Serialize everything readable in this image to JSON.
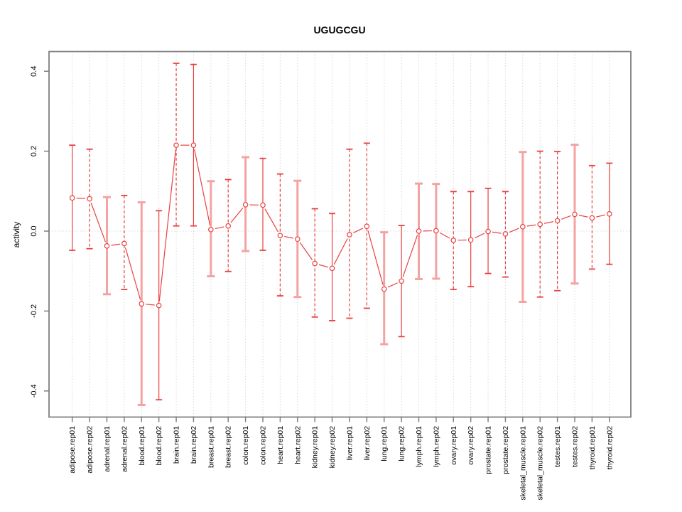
{
  "window": {
    "background": "#ffffff"
  },
  "chart_data": {
    "type": "line",
    "title": "UGUGCGU",
    "xlabel": "",
    "ylabel": "activity",
    "legend_position": "none",
    "grid": {
      "vertical_dotted_per_category": true,
      "horizontal_dotted_at_zero": true
    },
    "ylim": [
      -0.47,
      0.45
    ],
    "y_ticks": [
      -0.4,
      -0.2,
      0.0,
      0.2,
      0.4
    ],
    "categories": [
      "adipose.rep01",
      "adipose.rep02",
      "adrenal.rep01",
      "adrenal.rep02",
      "blood.rep01",
      "blood.rep02",
      "brain.rep01",
      "brain.rep02",
      "breast.rep01",
      "breast.rep02",
      "colon.rep01",
      "colon.rep02",
      "heart.rep01",
      "heart.rep02",
      "kidney.rep01",
      "kidney.rep02",
      "liver.rep01",
      "liver.rep02",
      "lung.rep01",
      "lung.rep02",
      "lymph.rep01",
      "lymph.rep02",
      "ovary.rep01",
      "ovary.rep02",
      "prostate.rep01",
      "prostate.rep02",
      "skeletal_muscle.rep01",
      "skeletal_muscle.rep02",
      "testes.rep01",
      "testes.rep02",
      "thyroid.rep01",
      "thyroid.rep02"
    ],
    "series": [
      {
        "name": "activity",
        "values": [
          0.083,
          0.081,
          -0.037,
          -0.031,
          -0.182,
          -0.186,
          0.215,
          0.215,
          0.004,
          0.013,
          0.066,
          0.065,
          -0.011,
          -0.02,
          -0.081,
          -0.093,
          -0.009,
          0.012,
          -0.145,
          -0.125,
          0.0,
          0.001,
          -0.023,
          -0.022,
          -0.001,
          -0.007,
          0.011,
          0.017,
          0.026,
          0.042,
          0.033,
          0.043
        ],
        "error_upper": [
          0.215,
          0.205,
          0.085,
          0.089,
          0.072,
          0.051,
          0.42,
          0.417,
          0.125,
          0.129,
          0.185,
          0.182,
          0.143,
          0.126,
          0.056,
          0.044,
          0.205,
          0.22,
          -0.003,
          0.014,
          0.119,
          0.118,
          0.099,
          0.099,
          0.107,
          0.099,
          0.198,
          0.2,
          0.199,
          0.216,
          0.164,
          0.17
        ],
        "error_lower": [
          -0.048,
          -0.044,
          -0.158,
          -0.146,
          -0.435,
          -0.422,
          0.013,
          0.013,
          -0.113,
          -0.101,
          -0.05,
          -0.048,
          -0.162,
          -0.165,
          -0.215,
          -0.224,
          -0.218,
          -0.193,
          -0.283,
          -0.264,
          -0.12,
          -0.119,
          -0.146,
          -0.139,
          -0.106,
          -0.115,
          -0.177,
          -0.165,
          -0.149,
          -0.131,
          -0.095,
          -0.083
        ],
        "error_bar_styles": [
          "solid",
          "dashed",
          "thick",
          "dashed",
          "thick",
          "solid",
          "dashed",
          "solid",
          "thick",
          "dashed",
          "thick",
          "solid",
          "dashed",
          "thick",
          "dashed",
          "solid",
          "dashed",
          "dashed",
          "thick",
          "solid",
          "thick",
          "thick",
          "dashed",
          "solid",
          "solid",
          "dashed",
          "thick",
          "dashed",
          "dashed",
          "thick",
          "dashed",
          "solid"
        ]
      }
    ],
    "colors": {
      "line": "#e94040",
      "point_fill": "#ffffff",
      "error_light": "#f5a2a2",
      "grid": "#d8d8d8",
      "axis": "#7f7f7f",
      "text": "#000000"
    }
  }
}
